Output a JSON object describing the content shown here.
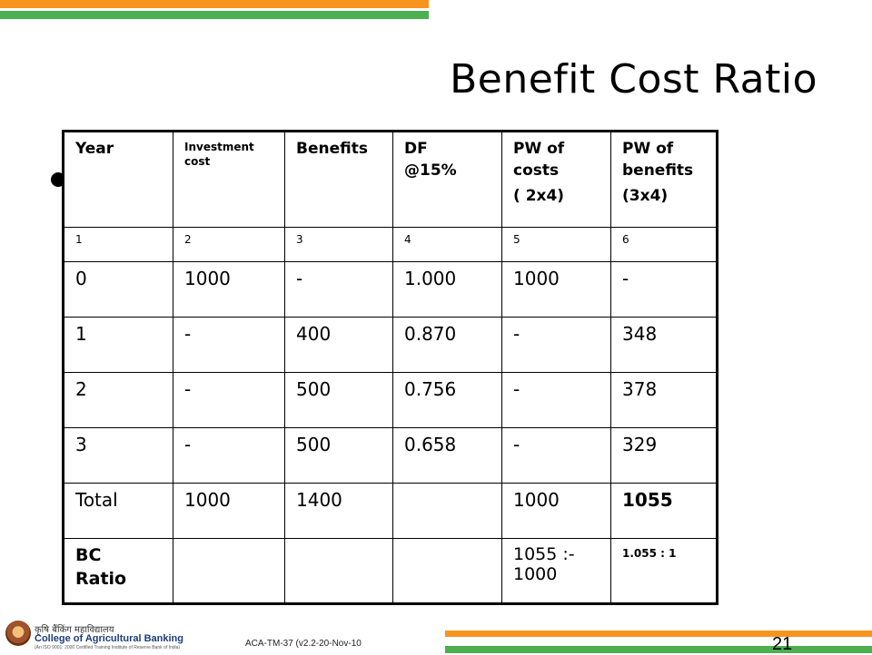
{
  "slide": {
    "title": "Benefit Cost Ratio",
    "page_number": "21",
    "footer_code": "ACA-TM-37 (v2.2-20-Nov-10",
    "org": {
      "name_hindi": "कृषि बैंकिंग महाविद्यालय",
      "name": "College of Agricultural Banking",
      "certification": "(An ISO 9001: 2000 Certified Training Institute of Reserve Bank of India)"
    },
    "colors": {
      "stripe_orange": "#f7941d",
      "stripe_green": "#4caf50"
    }
  },
  "table": {
    "headers": {
      "year": "Year",
      "investment": "Investment cost",
      "benefits": "Benefits",
      "df_line1": "DF",
      "df_line2": "@15%",
      "pw_costs_line1": "PW of costs",
      "pw_costs_line2": "( 2x4)",
      "pw_benefits_line1": "PW of benefits",
      "pw_benefits_line2": "(3x4)"
    },
    "column_numbers": [
      "1",
      "2",
      "3",
      "4",
      "5",
      "6"
    ],
    "rows": [
      [
        "0",
        "1000",
        "-",
        "1.000",
        "1000",
        "-"
      ],
      [
        "1",
        "-",
        "400",
        "0.870",
        "-",
        "348"
      ],
      [
        "2",
        "-",
        "500",
        "0.756",
        "-",
        "378"
      ],
      [
        "3",
        "-",
        "500",
        "0.658",
        "-",
        "329"
      ]
    ],
    "total": {
      "label": "Total",
      "investment": "1000",
      "benefits": "1400",
      "df": "",
      "pw_costs": "1000",
      "pw_benefits": "1055"
    },
    "bc_ratio": {
      "label_line1": "BC",
      "label_line2": "Ratio",
      "calc_line1": "1055 :-",
      "calc_line2": "1000",
      "result": "1.055 : 1"
    }
  }
}
